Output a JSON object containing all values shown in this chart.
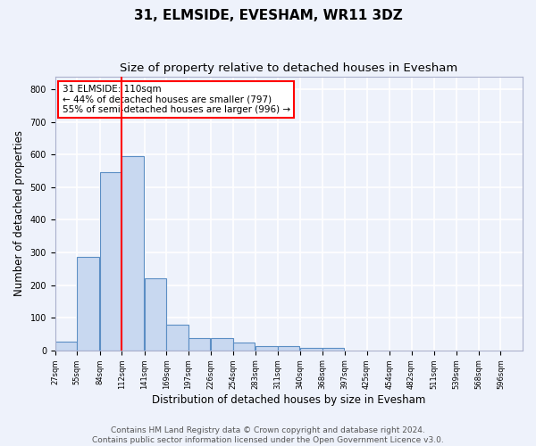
{
  "title": "31, ELMSIDE, EVESHAM, WR11 3DZ",
  "subtitle": "Size of property relative to detached houses in Evesham",
  "xlabel": "Distribution of detached houses by size in Evesham",
  "ylabel": "Number of detached properties",
  "bin_labels": [
    "27sqm",
    "55sqm",
    "84sqm",
    "112sqm",
    "141sqm",
    "169sqm",
    "197sqm",
    "226sqm",
    "254sqm",
    "283sqm",
    "311sqm",
    "340sqm",
    "368sqm",
    "397sqm",
    "425sqm",
    "454sqm",
    "482sqm",
    "511sqm",
    "539sqm",
    "568sqm",
    "596sqm"
  ],
  "bin_edges": [
    27,
    55,
    84,
    112,
    141,
    169,
    197,
    226,
    254,
    283,
    311,
    340,
    368,
    397,
    425,
    454,
    482,
    511,
    539,
    568,
    596
  ],
  "bar_heights": [
    27,
    287,
    546,
    596,
    220,
    78,
    37,
    37,
    25,
    12,
    12,
    8,
    8,
    0,
    0,
    0,
    0,
    0,
    0,
    0,
    0
  ],
  "bar_color": "#c8d8f0",
  "bar_edge_color": "#5b8ec4",
  "red_line_x": 112,
  "ylim": [
    0,
    840
  ],
  "yticks": [
    0,
    100,
    200,
    300,
    400,
    500,
    600,
    700,
    800
  ],
  "annotation_box_text": "31 ELMSIDE: 110sqm\n← 44% of detached houses are smaller (797)\n55% of semi-detached houses are larger (996) →",
  "footer_text": "Contains HM Land Registry data © Crown copyright and database right 2024.\nContains public sector information licensed under the Open Government Licence v3.0.",
  "bg_color": "#eef2fb",
  "grid_color": "#ffffff",
  "title_fontsize": 11,
  "subtitle_fontsize": 9.5,
  "ylabel_fontsize": 8.5,
  "xlabel_fontsize": 8.5,
  "tick_fontsize": 7,
  "xtick_fontsize": 6,
  "footer_fontsize": 6.5,
  "annot_fontsize": 7.5
}
